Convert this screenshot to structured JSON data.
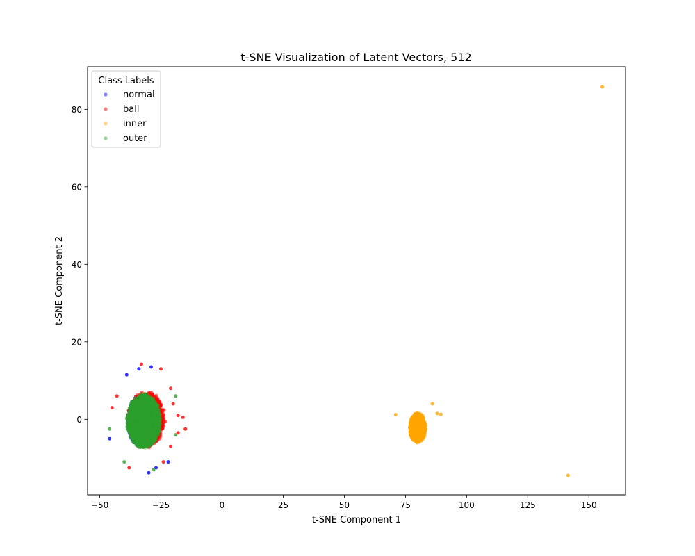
{
  "chart_data": {
    "type": "scatter",
    "title": "t-SNE Visualization of Latent Vectors, 512",
    "xlabel": "t-SNE Component 1",
    "ylabel": "t-SNE Component 2",
    "xlim": [
      -55,
      165
    ],
    "ylim": [
      -19.5,
      91
    ],
    "xticks": [
      -50,
      -25,
      0,
      25,
      50,
      75,
      100,
      125,
      150
    ],
    "xtick_labels": [
      "−50",
      "−25",
      "0",
      "25",
      "50",
      "75",
      "100",
      "125",
      "150"
    ],
    "yticks": [
      0,
      20,
      40,
      60,
      80
    ],
    "ytick_labels": [
      "0",
      "20",
      "40",
      "60",
      "80"
    ],
    "grid": false,
    "legend": {
      "title": "Class Labels",
      "placement": "top-left"
    },
    "series": [
      {
        "name": "normal",
        "color": "#0000ff",
        "alpha": 0.5,
        "cluster": {
          "center": [
            -32,
            -0.5
          ],
          "spread": [
            6.5,
            6.4
          ],
          "count": 1600
        },
        "points": [
          [
            -46,
            -5
          ],
          [
            -39,
            11.5
          ],
          [
            -34,
            13
          ],
          [
            -29,
            13.5
          ],
          [
            -22,
            -11
          ],
          [
            -30,
            -13.8
          ],
          [
            -27,
            -12.5
          ]
        ]
      },
      {
        "name": "ball",
        "color": "#ff0000",
        "alpha": 0.5,
        "cluster": {
          "center": [
            -31,
            0
          ],
          "spread": [
            7.2,
            6.8
          ],
          "count": 1600
        },
        "points": [
          [
            -33,
            14.2
          ],
          [
            -25,
            13
          ],
          [
            -21,
            8
          ],
          [
            -20,
            4
          ],
          [
            -18,
            1
          ],
          [
            -16,
            0.5
          ],
          [
            -15,
            -2.5
          ],
          [
            -18,
            -3.5
          ],
          [
            -21,
            -7
          ],
          [
            -24,
            -11
          ],
          [
            -38,
            -12.5
          ],
          [
            -45,
            3
          ],
          [
            -43,
            6
          ]
        ]
      },
      {
        "name": "inner",
        "color": "#ffa500",
        "alpha": 0.5,
        "cluster": {
          "center": [
            80,
            -2.2
          ],
          "spread": [
            3.2,
            3.7
          ],
          "count": 1400
        },
        "points": [
          [
            155.5,
            85.8
          ],
          [
            141.5,
            -14.5
          ],
          [
            89.5,
            1.3
          ],
          [
            71,
            1.2
          ],
          [
            86,
            4
          ],
          [
            88,
            1.5
          ]
        ]
      },
      {
        "name": "outer",
        "color": "#2ca02c",
        "alpha": 0.5,
        "cluster": {
          "center": [
            -32,
            -0.5
          ],
          "spread": [
            6.6,
            6.6
          ],
          "count": 2600
        },
        "points": [
          [
            -46,
            -2.5
          ],
          [
            -19,
            -4
          ],
          [
            -19,
            6
          ],
          [
            -40,
            -11
          ],
          [
            -28,
            -13
          ]
        ]
      }
    ]
  }
}
